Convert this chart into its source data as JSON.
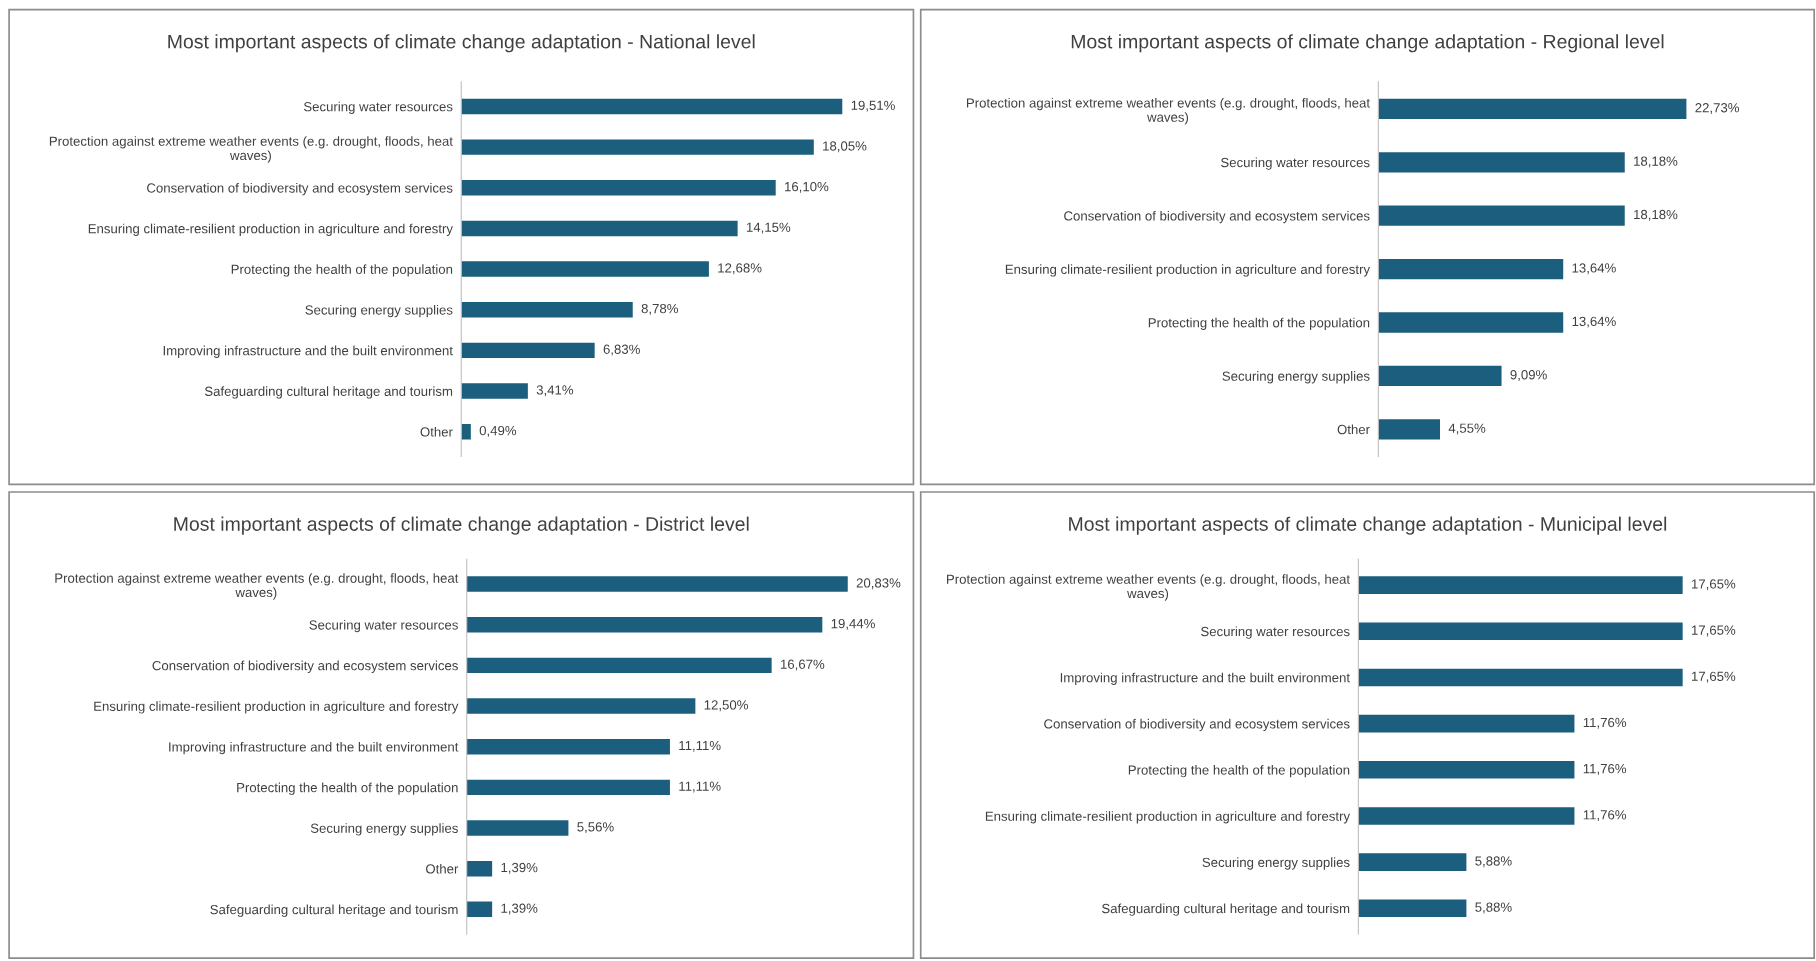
{
  "chart_data": [
    {
      "type": "bar",
      "orientation": "horizontal",
      "title": "Most important aspects of climate change adaptation - National level",
      "color": "#1b5e7e",
      "categories": [
        "Securing water resources",
        "Protection against extreme weather events (e.g. drought, floods, heat\nwaves)",
        "Conservation of biodiversity and ecosystem services",
        "Ensuring climate-resilient production in agriculture and forestry",
        "Protecting the health of the population",
        "Securing energy supplies",
        "Improving infrastructure and the built environment",
        "Safeguarding cultural heritage and tourism",
        "Other"
      ],
      "values": [
        19.51,
        18.05,
        16.1,
        14.15,
        12.68,
        8.78,
        6.83,
        3.41,
        0.49
      ],
      "value_labels": [
        "19,51%",
        "18,05%",
        "16,10%",
        "14,15%",
        "12,68%",
        "8,78%",
        "6,83%",
        "3,41%",
        "0,49%"
      ]
    },
    {
      "type": "bar",
      "orientation": "horizontal",
      "title": "Most important aspects of climate change adaptation - Regional level",
      "color": "#1b5e7e",
      "categories": [
        "Protection against extreme weather events (e.g. drought, floods, heat\nwaves)",
        "Securing water resources",
        "Conservation of biodiversity and ecosystem services",
        "Ensuring climate-resilient production in agriculture and forestry",
        "Protecting the health of the population",
        "Securing energy supplies",
        "Other"
      ],
      "values": [
        22.73,
        18.18,
        18.18,
        13.64,
        13.64,
        9.09,
        4.55
      ],
      "value_labels": [
        "22,73%",
        "18,18%",
        "18,18%",
        "13,64%",
        "13,64%",
        "9,09%",
        "4,55%"
      ]
    },
    {
      "type": "bar",
      "orientation": "horizontal",
      "title": "Most important aspects of climate change adaptation - District level",
      "color": "#1b5e7e",
      "categories": [
        "Protection against extreme weather events (e.g. drought, floods, heat\nwaves)",
        "Securing water resources",
        "Conservation of biodiversity and ecosystem services",
        "Ensuring climate-resilient production in agriculture and forestry",
        "Improving infrastructure and the built environment",
        "Protecting the health of the population",
        "Securing energy supplies",
        "Other",
        "Safeguarding cultural heritage and tourism"
      ],
      "values": [
        20.83,
        19.44,
        16.67,
        12.5,
        11.11,
        11.11,
        5.56,
        1.39,
        1.39
      ],
      "value_labels": [
        "20,83%",
        "19,44%",
        "16,67%",
        "12,50%",
        "11,11%",
        "11,11%",
        "5,56%",
        "1,39%",
        "1,39%"
      ]
    },
    {
      "type": "bar",
      "orientation": "horizontal",
      "title": "Most important aspects of climate change adaptation - Municipal level",
      "color": "#1b5e7e",
      "categories": [
        "Protection against extreme weather events (e.g. drought, floods, heat\nwaves)",
        "Securing water resources",
        "Improving infrastructure and the built environment",
        "Conservation of biodiversity and ecosystem services",
        "Protecting the health of the population",
        "Ensuring climate-resilient production in agriculture and forestry",
        "Securing energy supplies",
        "Safeguarding cultural heritage and tourism"
      ],
      "values": [
        17.65,
        17.65,
        17.65,
        11.76,
        11.76,
        11.76,
        5.88,
        5.88
      ],
      "value_labels": [
        "17,65%",
        "17,65%",
        "17,65%",
        "11,76%",
        "11,76%",
        "11,76%",
        "5,88%",
        "5,88%"
      ]
    }
  ]
}
